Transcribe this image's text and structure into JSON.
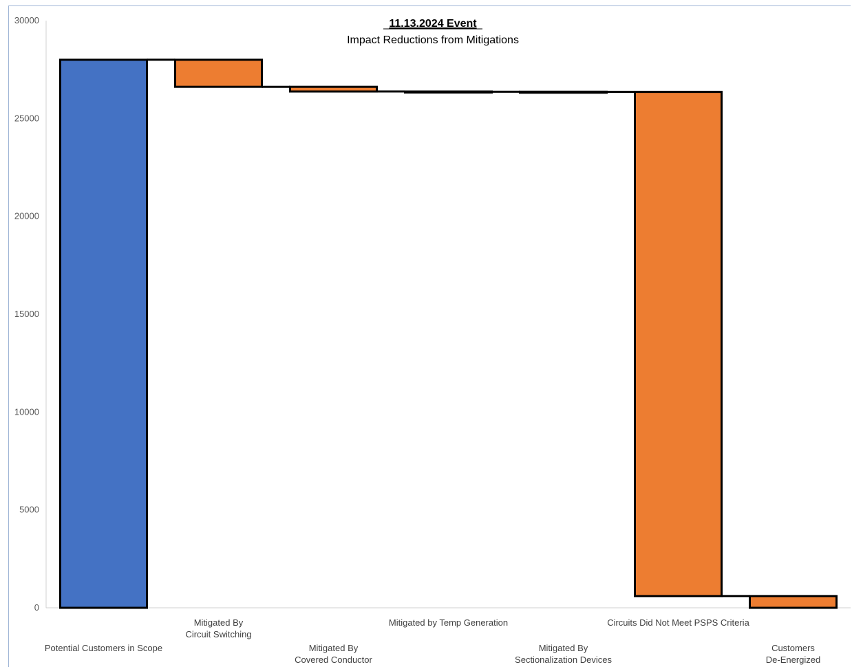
{
  "chart_data": {
    "type": "bar",
    "subtype": "waterfall",
    "title": "11.13.2024 Event",
    "subtitle": "Impact Reductions from Mitigations",
    "xlabel": "",
    "ylabel": "",
    "ylim": [
      0,
      30000
    ],
    "yticks": [
      0,
      5000,
      10000,
      15000,
      20000,
      25000,
      30000
    ],
    "grid": false,
    "legend": "none",
    "categories": [
      [
        "Potential Customers in Scope"
      ],
      [
        "Mitigated By",
        "Circuit Switching"
      ],
      [
        "Mitigated By",
        "Covered Conductor"
      ],
      [
        "Mitigated by Temp Generation"
      ],
      [
        "Mitigated By",
        "Sectionalization Devices"
      ],
      [
        "Circuits Did Not Meet PSPS Criteria"
      ],
      [
        "Customers",
        "De-Energized"
      ]
    ],
    "bars": [
      {
        "kind": "total",
        "start": 0,
        "end": 28000
      },
      {
        "kind": "decrease",
        "start": 28000,
        "end": 26620
      },
      {
        "kind": "decrease",
        "start": 26620,
        "end": 26380
      },
      {
        "kind": "decrease",
        "start": 26380,
        "end": 26370
      },
      {
        "kind": "decrease",
        "start": 26370,
        "end": 26360
      },
      {
        "kind": "decrease",
        "start": 26360,
        "end": 600
      },
      {
        "kind": "decrease",
        "start": 600,
        "end": 0
      }
    ],
    "colors": {
      "total": "#4472c4",
      "decrease": "#ed7d31",
      "outline": "#000000",
      "axis": "#d0d0d0"
    }
  }
}
